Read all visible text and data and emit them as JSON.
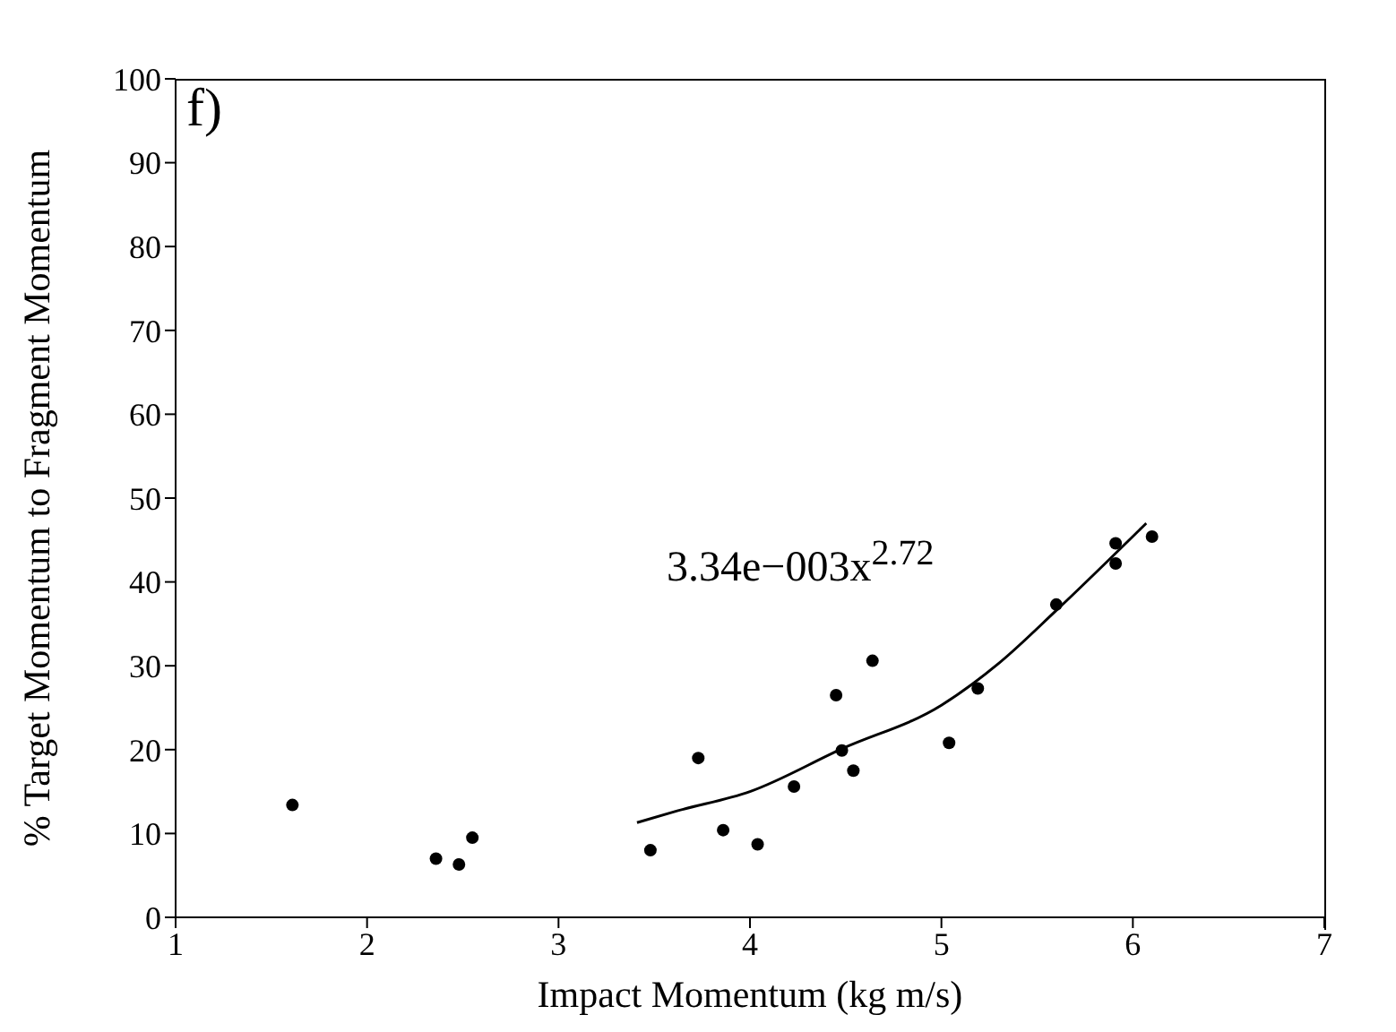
{
  "chart_data": {
    "type": "scatter",
    "xlabel": "Impact Momentum (kg m/s)",
    "ylabel": "% Target Momentum to Fragment Momentum",
    "annotations": [
      "f)",
      "3.34e−003x$^{2.72}$"
    ],
    "series": [
      {
        "color": "#000000",
        "marker": "circle",
        "x": [
          1.61,
          2.36,
          2.48,
          2.55,
          3.48,
          3.73,
          3.86,
          4.04,
          4.23,
          4.45,
          4.48,
          4.54,
          4.64,
          5.04,
          5.19,
          5.6,
          5.91,
          5.91,
          6.1
        ],
        "values": [
          13.4,
          7.0,
          6.3,
          9.5,
          8.0,
          19.0,
          10.4,
          8.7,
          15.6,
          26.5,
          19.9,
          17.5,
          30.6,
          20.8,
          27.3,
          37.3,
          44.6,
          42.2,
          45.4
        ]
      },
      {
        "type": "line",
        "color": "#000000",
        "marker": "none",
        "line_style": "solid",
        "x": [
          3.41,
          3.62,
          4.0,
          4.48,
          5.0,
          5.3,
          5.6,
          6.07
        ],
        "values": [
          11.3,
          12.7,
          15.0,
          20.1,
          25.3,
          30.3,
          36.6,
          47.0
        ]
      }
    ],
    "xlim": [
      1,
      7
    ],
    "xticks": [
      1,
      2,
      3,
      4,
      5,
      6,
      7
    ],
    "ylim": [
      0,
      100
    ],
    "yticks": [
      0,
      10,
      20,
      30,
      40,
      50,
      60,
      70,
      80,
      90,
      100
    ],
    "grid": false
  }
}
